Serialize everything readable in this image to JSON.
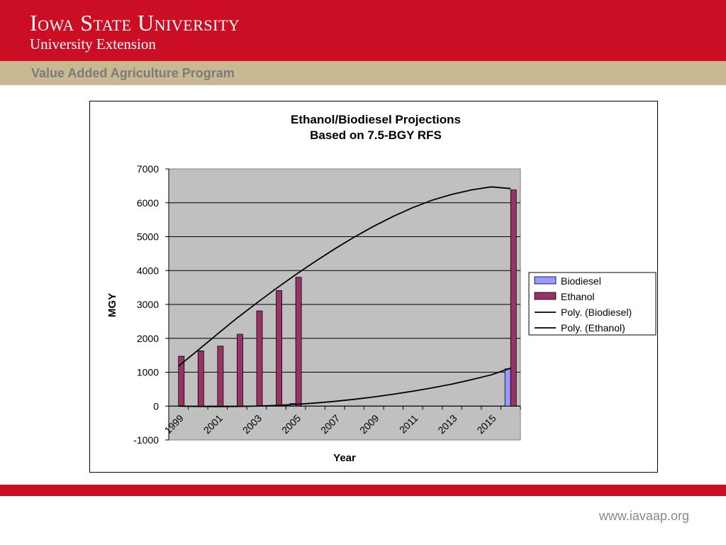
{
  "header": {
    "university": "Iowa State University",
    "extension": "University Extension",
    "band_color": "#cc0e25"
  },
  "program": {
    "name": "Value Added Agriculture Program",
    "band_color": "#c8b993"
  },
  "footer": {
    "url": "www.iavaap.org"
  },
  "chart_data": {
    "type": "bar",
    "title": [
      "Ethanol/Biodiesel Projections",
      "Based on 7.5-BGY RFS"
    ],
    "xlabel": "Year",
    "ylabel": "MGY",
    "ylim": [
      -1000,
      7000
    ],
    "yticks": [
      -1000,
      0,
      1000,
      2000,
      3000,
      4000,
      5000,
      6000,
      7000
    ],
    "categories": [
      "1999",
      "2000",
      "2001",
      "2002",
      "2003",
      "2004",
      "2005",
      "2006",
      "2007",
      "2008",
      "2009",
      "2010",
      "2011",
      "2012",
      "2013",
      "2014",
      "2015",
      "2016"
    ],
    "xtick_labels": [
      "1999",
      "2001",
      "2003",
      "2005",
      "2007",
      "2009",
      "2011",
      "2013",
      "2015"
    ],
    "grid": true,
    "plot_background": "#c0c0c0",
    "legend_position": "right",
    "series": [
      {
        "name": "Biodiesel",
        "type": "bar",
        "color": "#9999ff",
        "values": [
          null,
          null,
          null,
          null,
          null,
          null,
          75,
          null,
          null,
          null,
          null,
          null,
          null,
          null,
          null,
          null,
          null,
          1100
        ]
      },
      {
        "name": "Ethanol",
        "type": "bar",
        "color": "#993366",
        "values": [
          1470,
          1630,
          1770,
          2120,
          2810,
          3410,
          3800,
          null,
          null,
          null,
          null,
          null,
          null,
          null,
          null,
          null,
          null,
          6380
        ]
      },
      {
        "name": "Poly. (Biodiesel)",
        "type": "trendline",
        "color": "#000000",
        "values": [
          0,
          -10,
          -15,
          -10,
          0,
          20,
          50,
          90,
          140,
          200,
          270,
          350,
          440,
          540,
          650,
          780,
          920,
          1120
        ]
      },
      {
        "name": "Poly. (Ethanol)",
        "type": "trendline",
        "color": "#000000",
        "values": [
          1180,
          1650,
          2130,
          2600,
          3040,
          3470,
          3880,
          4270,
          4640,
          4990,
          5310,
          5600,
          5860,
          6080,
          6250,
          6380,
          6470,
          6420
        ]
      }
    ]
  }
}
